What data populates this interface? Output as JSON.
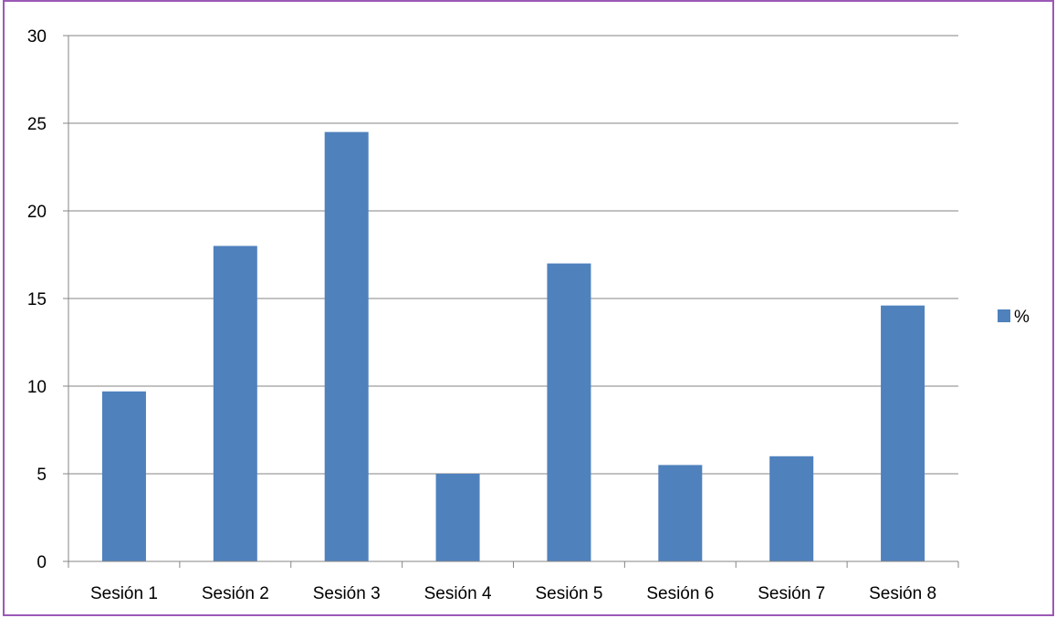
{
  "chart_data": {
    "type": "bar",
    "categories": [
      "Sesión 1",
      "Sesión 2",
      "Sesión 3",
      "Sesión 4",
      "Sesión 5",
      "Sesión 6",
      "Sesión 7",
      "Sesión 8"
    ],
    "series": [
      {
        "name": "%",
        "values": [
          9.7,
          18,
          24.5,
          5,
          17,
          5.5,
          6,
          14.6
        ],
        "color": "#4f81bd"
      }
    ],
    "title": "",
    "xlabel": "",
    "ylabel": "",
    "ylim": [
      0,
      30
    ],
    "yticks": [
      0,
      5,
      10,
      15,
      20,
      25,
      30
    ],
    "grid": true,
    "legend_position": "right",
    "frame_color": "#9b59b6",
    "gridline_color": "#868686"
  }
}
